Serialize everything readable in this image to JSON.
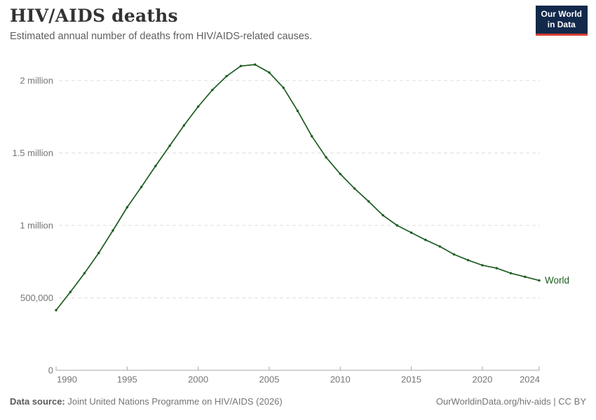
{
  "header": {
    "title": "HIV/AIDS deaths",
    "subtitle": "Estimated annual number of deaths from HIV/AIDS-related causes."
  },
  "logo": {
    "line1": "Our World",
    "line2": "in Data",
    "bg_color": "#12294b",
    "accent_color": "#d73c2c"
  },
  "footer": {
    "datasource_label": "Data source:",
    "datasource_value": " Joint United Nations Programme on HIV/AIDS (2026)",
    "attribution": "OurWorldinData.org/hiv-aids | CC BY"
  },
  "chart_data": {
    "type": "line",
    "title": "HIV/AIDS deaths",
    "xlabel": "",
    "ylabel": "",
    "xlim": [
      1990,
      2024
    ],
    "ylim": [
      0,
      2200000
    ],
    "grid": "horizontal-dashed",
    "legend_position": "end-of-line-label",
    "x": [
      1990,
      1991,
      1992,
      1993,
      1994,
      1995,
      1996,
      1997,
      1998,
      1999,
      2000,
      2001,
      2002,
      2003,
      2004,
      2005,
      2006,
      2007,
      2008,
      2009,
      2010,
      2011,
      2012,
      2013,
      2014,
      2015,
      2016,
      2017,
      2018,
      2019,
      2020,
      2021,
      2022,
      2023,
      2024
    ],
    "series": [
      {
        "name": "World",
        "color": "#1d5c21",
        "values": [
          415000,
          540000,
          670000,
          810000,
          965000,
          1125000,
          1265000,
          1410000,
          1550000,
          1690000,
          1820000,
          1935000,
          2030000,
          2100000,
          2110000,
          2055000,
          1950000,
          1790000,
          1615000,
          1470000,
          1355000,
          1255000,
          1165000,
          1070000,
          1000000,
          950000,
          900000,
          855000,
          800000,
          760000,
          725000,
          705000,
          670000,
          645000,
          620000
        ]
      }
    ],
    "xticks": [
      1990,
      1995,
      2000,
      2005,
      2010,
      2015,
      2020,
      2024
    ],
    "yticks": [
      {
        "value": 0,
        "label": "0"
      },
      {
        "value": 500000,
        "label": "500,000"
      },
      {
        "value": 1000000,
        "label": "1 million"
      },
      {
        "value": 1500000,
        "label": "1.5 million"
      },
      {
        "value": 2000000,
        "label": "2 million"
      }
    ]
  }
}
